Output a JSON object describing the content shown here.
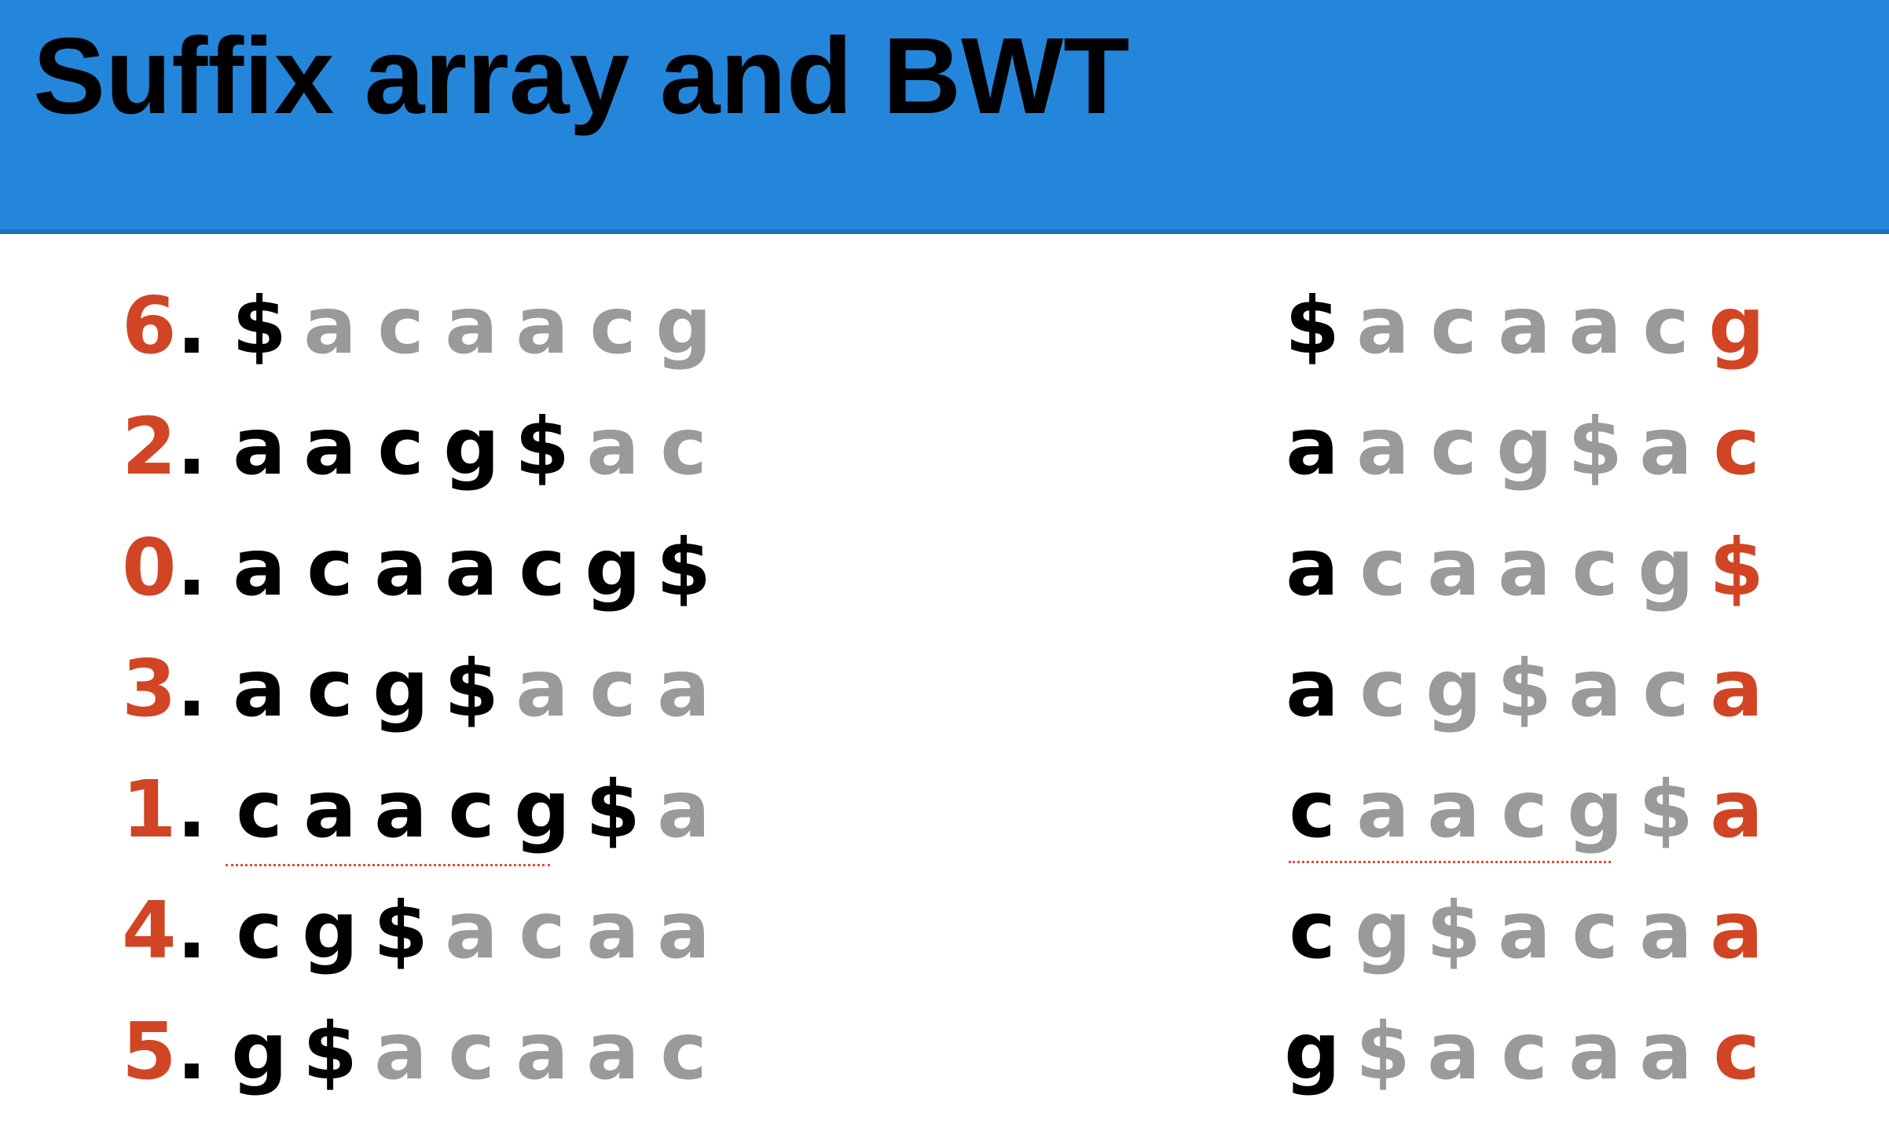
{
  "title": "Suffix array and BWT",
  "colors": {
    "title_bar": "#2486db",
    "index_highlight": "#d14524",
    "suffix_text": "#000000",
    "rotation_text": "#9a9a9a",
    "bwt_char": "#d14524"
  },
  "suffix_array": {
    "rows": [
      {
        "index": "6",
        "dot": ".",
        "chars": [
          "$",
          "a",
          "c",
          "a",
          "a",
          "c",
          "g"
        ],
        "suffix_len": 1
      },
      {
        "index": "2",
        "dot": ".",
        "chars": [
          "a",
          "a",
          "c",
          "g",
          "$",
          "a",
          "c"
        ],
        "suffix_len": 5
      },
      {
        "index": "0",
        "dot": ".",
        "chars": [
          "a",
          "c",
          "a",
          "a",
          "c",
          "g",
          "$"
        ],
        "suffix_len": 7
      },
      {
        "index": "3",
        "dot": ".",
        "chars": [
          "a",
          "c",
          "g",
          "$",
          "a",
          "c",
          "a"
        ],
        "suffix_len": 4
      },
      {
        "index": "1",
        "dot": ".",
        "chars": [
          "c",
          "a",
          "a",
          "c",
          "g",
          "$",
          "a"
        ],
        "suffix_len": 6
      },
      {
        "index": "4",
        "dot": ".",
        "chars": [
          "c",
          "g",
          "$",
          "a",
          "c",
          "a",
          "a"
        ],
        "suffix_len": 3
      },
      {
        "index": "5",
        "dot": ".",
        "chars": [
          "g",
          "$",
          "a",
          "c",
          "a",
          "a",
          "c"
        ],
        "suffix_len": 2
      }
    ]
  },
  "bwt_matrix": {
    "rows": [
      {
        "chars": [
          "$",
          "a",
          "c",
          "a",
          "a",
          "c",
          "g"
        ]
      },
      {
        "chars": [
          "a",
          "a",
          "c",
          "g",
          "$",
          "a",
          "c"
        ]
      },
      {
        "chars": [
          "a",
          "c",
          "a",
          "a",
          "c",
          "g",
          "$"
        ]
      },
      {
        "chars": [
          "a",
          "c",
          "g",
          "$",
          "a",
          "c",
          "a"
        ]
      },
      {
        "chars": [
          "c",
          "a",
          "a",
          "c",
          "g",
          "$",
          "a"
        ]
      },
      {
        "chars": [
          "c",
          "g",
          "$",
          "a",
          "c",
          "a",
          "a"
        ]
      },
      {
        "chars": [
          "g",
          "$",
          "a",
          "c",
          "a",
          "a",
          "c"
        ]
      }
    ]
  }
}
